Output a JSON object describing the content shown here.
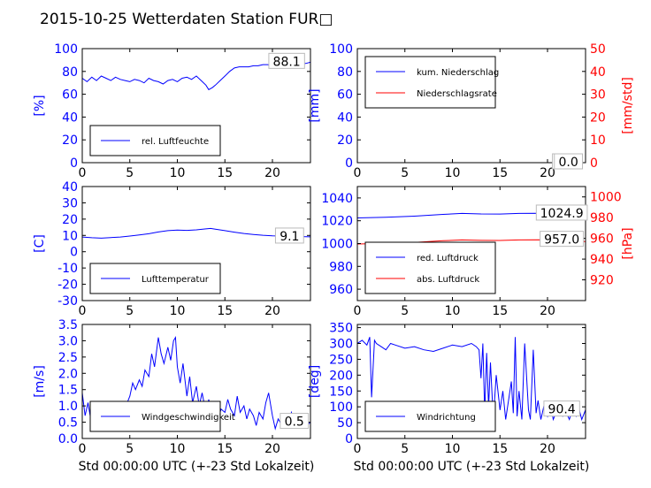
{
  "title": "2015-10-25 Wetterdaten Station FUR□",
  "colors": {
    "blue": "#0000ff",
    "red": "#ff0000",
    "black": "#000000"
  },
  "chart_data": [
    {
      "id": "humidity",
      "type": "line",
      "xlim": [
        0,
        24
      ],
      "ylim": [
        0,
        100
      ],
      "xticks": [
        0,
        5,
        10,
        15,
        20
      ],
      "yticks": [
        0,
        20,
        40,
        60,
        80,
        100
      ],
      "ylabel": "[%]",
      "legend_pos": "lower-left",
      "series": [
        {
          "name": "rel. Luftfeuchte",
          "color": "#0000ff",
          "x": [
            0,
            0.5,
            1,
            1.5,
            2,
            2.5,
            3,
            3.5,
            4,
            4.5,
            5,
            5.5,
            6,
            6.5,
            7,
            7.5,
            8,
            8.5,
            9,
            9.5,
            10,
            10.5,
            11,
            11.5,
            12,
            12.5,
            13,
            13.3,
            13.7,
            14,
            14.5,
            15,
            15.5,
            16,
            16.5,
            17,
            17.5,
            18,
            18.5,
            19,
            19.5,
            20,
            20.5,
            21,
            21.5,
            22,
            22.5,
            23,
            23.5,
            24
          ],
          "y": [
            74,
            71,
            75,
            72,
            76,
            74,
            72,
            75,
            73,
            72,
            71,
            73,
            72,
            70,
            74,
            72,
            71,
            69,
            72,
            73,
            71,
            74,
            75,
            73,
            76,
            72,
            68,
            64,
            66,
            68,
            72,
            76,
            80,
            83,
            84,
            84,
            84,
            85,
            85,
            86,
            86,
            85,
            86,
            86,
            86,
            87,
            87,
            87,
            87,
            88.1
          ]
        }
      ],
      "annotations": [
        {
          "text": "88.1"
        }
      ]
    },
    {
      "id": "precip",
      "type": "line",
      "xlim": [
        0,
        24
      ],
      "ylim": [
        0,
        100
      ],
      "ylim_right": [
        0,
        50
      ],
      "xticks": [
        0,
        5,
        10,
        15,
        20
      ],
      "yticks": [
        0,
        20,
        40,
        60,
        80,
        100
      ],
      "yticks_right": [
        0,
        10,
        20,
        30,
        40,
        50
      ],
      "ylabel": "[mm]",
      "ylabel_right": "[mm/std]",
      "legend_pos": "upper-left",
      "series": [
        {
          "name": "kum. Niederschlag",
          "color": "#0000ff",
          "axis": "left",
          "x": [
            0,
            24
          ],
          "y": [
            0,
            0
          ]
        },
        {
          "name": "Niederschlagsrate",
          "color": "#ff0000",
          "axis": "right",
          "x": [
            0,
            24
          ],
          "y": [
            0,
            0
          ]
        }
      ],
      "annotations": [
        {
          "text": "0.0"
        },
        {
          "text": "0.0"
        }
      ]
    },
    {
      "id": "temp",
      "type": "line",
      "xlim": [
        0,
        24
      ],
      "ylim": [
        -30,
        40
      ],
      "xticks": [
        0,
        5,
        10,
        15,
        20
      ],
      "yticks": [
        -30,
        -20,
        -10,
        0,
        10,
        20,
        30,
        40
      ],
      "ylabel": "[C]",
      "legend_pos": "lower-left",
      "series": [
        {
          "name": "Lufttemperatur",
          "color": "#0000ff",
          "x": [
            0,
            1,
            2,
            3,
            4,
            5,
            6,
            7,
            8,
            9,
            10,
            11,
            12,
            13,
            13.5,
            14,
            15,
            16,
            17,
            18,
            19,
            20,
            21,
            22,
            23,
            24
          ],
          "y": [
            9.0,
            8.6,
            8.3,
            8.7,
            9.0,
            9.6,
            10.3,
            11.0,
            12.1,
            12.9,
            13.3,
            13.1,
            13.4,
            14.0,
            14.3,
            13.8,
            12.9,
            12.0,
            11.2,
            10.6,
            10.1,
            9.8,
            9.6,
            9.5,
            9.3,
            9.1
          ]
        }
      ],
      "annotations": [
        {
          "text": "9.1"
        }
      ]
    },
    {
      "id": "pressure",
      "type": "line",
      "xlim": [
        0,
        24
      ],
      "ylim": [
        950,
        1050
      ],
      "ylim_right": [
        900,
        1010
      ],
      "xticks": [
        0,
        5,
        10,
        15,
        20
      ],
      "yticks": [
        960,
        980,
        1000,
        1020,
        1040
      ],
      "yticks_right": [
        920,
        940,
        960,
        980,
        1000
      ],
      "ylabel_right": "[hPa]",
      "legend_pos": "lower-left",
      "series": [
        {
          "name": "red. Luftdruck",
          "color": "#0000ff",
          "axis": "left",
          "x": [
            0,
            3,
            6,
            9,
            11,
            13,
            15,
            17,
            19,
            21,
            22,
            24
          ],
          "y": [
            1022.5,
            1023.0,
            1024.0,
            1025.6,
            1026.4,
            1026.0,
            1025.9,
            1026.4,
            1026.6,
            1026.2,
            1025.6,
            1024.9
          ]
        },
        {
          "name": "abs. Luftdruck",
          "color": "#ff0000",
          "axis": "right",
          "x": [
            0,
            3,
            6,
            9,
            11,
            13,
            15,
            17,
            19,
            21,
            22,
            24
          ],
          "y": [
            954.6,
            955.1,
            956.1,
            957.7,
            958.5,
            958.1,
            958.0,
            958.5,
            958.7,
            958.3,
            957.7,
            957.0
          ]
        }
      ],
      "annotations": [
        {
          "text": "1024.9"
        },
        {
          "text": "957.0"
        }
      ]
    },
    {
      "id": "wind",
      "type": "line",
      "xlim": [
        0,
        24
      ],
      "ylim": [
        0,
        3.5
      ],
      "xticks": [
        0,
        5,
        10,
        15,
        20
      ],
      "yticks": [
        0.0,
        0.5,
        1.0,
        1.5,
        2.0,
        2.5,
        3.0,
        3.5
      ],
      "ylabel": "[m/s]",
      "xlabel": "Std 00:00:00 UTC (+-23 Std Lokalzeit)",
      "legend_pos": "lower-left",
      "series": [
        {
          "name": "Windgeschwindigkeit",
          "color": "#0000ff",
          "x": [
            0,
            0.3,
            0.6,
            1,
            1.3,
            1.6,
            2,
            2.3,
            2.6,
            3,
            3.3,
            3.6,
            4,
            4.3,
            4.6,
            5,
            5.3,
            5.6,
            6,
            6.3,
            6.6,
            7,
            7.3,
            7.6,
            8,
            8.3,
            8.6,
            9,
            9.3,
            9.6,
            9.8,
            10,
            10.3,
            10.6,
            11,
            11.3,
            11.6,
            12,
            12.3,
            12.6,
            13,
            13.3,
            13.6,
            14,
            14.3,
            14.6,
            15,
            15.3,
            15.6,
            16,
            16.3,
            16.6,
            17,
            17.3,
            17.6,
            18,
            18.3,
            18.6,
            19,
            19.3,
            19.6,
            20,
            20.3,
            20.6,
            21,
            21.3,
            21.6,
            22,
            22.3,
            22.6,
            23,
            23.3,
            23.6,
            24
          ],
          "y": [
            1.4,
            0.7,
            1.1,
            0.4,
            0.9,
            0.3,
            0.7,
            0.3,
            0.8,
            0.4,
            0.6,
            0.3,
            0.8,
            0.5,
            1.0,
            1.3,
            1.7,
            1.5,
            1.8,
            1.6,
            2.1,
            1.9,
            2.6,
            2.2,
            3.1,
            2.6,
            2.3,
            2.8,
            2.4,
            3.0,
            3.1,
            2.2,
            1.7,
            2.3,
            1.3,
            1.9,
            1.1,
            1.6,
            1.0,
            1.4,
            0.8,
            1.2,
            0.7,
            1.1,
            0.6,
            0.9,
            0.8,
            1.2,
            0.9,
            0.7,
            1.3,
            0.8,
            1.0,
            0.6,
            0.9,
            0.7,
            0.4,
            0.8,
            0.6,
            1.1,
            1.4,
            0.7,
            0.3,
            0.6,
            0.4,
            0.7,
            0.5,
            0.8,
            0.4,
            0.6,
            0.5,
            0.7,
            0.4,
            0.5
          ]
        }
      ],
      "annotations": [
        {
          "text": "0.5"
        }
      ]
    },
    {
      "id": "winddir",
      "type": "line",
      "xlim": [
        0,
        24
      ],
      "ylim": [
        0,
        360
      ],
      "xticks": [
        0,
        5,
        10,
        15,
        20
      ],
      "yticks": [
        0,
        50,
        100,
        150,
        200,
        250,
        300,
        350
      ],
      "ylabel": "[deg]",
      "xlabel": "Std 00:00:00 UTC (+-23 Std Lokalzeit)",
      "legend_pos": "lower-left",
      "series": [
        {
          "name": "Windrichtung",
          "color": "#0000ff",
          "x": [
            0,
            0.5,
            1,
            1.3,
            1.5,
            1.8,
            2,
            2.5,
            3,
            3.5,
            4,
            5,
            6,
            7,
            8,
            9,
            10,
            11,
            12,
            12.5,
            12.8,
            13,
            13.2,
            13.4,
            13.6,
            13.8,
            14,
            14.3,
            14.6,
            15,
            15.3,
            15.6,
            16,
            16.2,
            16.4,
            16.6,
            16.8,
            17,
            17.3,
            17.6,
            18,
            18.2,
            18.5,
            18.8,
            19,
            19.3,
            19.6,
            20,
            20.3,
            20.6,
            21,
            21.3,
            21.6,
            22,
            22.3,
            22.6,
            23,
            23.3,
            23.6,
            24
          ],
          "y": [
            300,
            310,
            295,
            320,
            130,
            310,
            300,
            290,
            280,
            300,
            295,
            285,
            290,
            280,
            275,
            285,
            295,
            290,
            300,
            290,
            280,
            190,
            300,
            80,
            270,
            100,
            240,
            60,
            200,
            90,
            150,
            60,
            140,
            180,
            80,
            320,
            70,
            150,
            60,
            300,
            90,
            60,
            280,
            80,
            120,
            60,
            100,
            70,
            110,
            60,
            90,
            100,
            70,
            80,
            60,
            90,
            70,
            95,
            60,
            90.4
          ]
        }
      ],
      "annotations": [
        {
          "text": "90.4"
        }
      ]
    }
  ]
}
